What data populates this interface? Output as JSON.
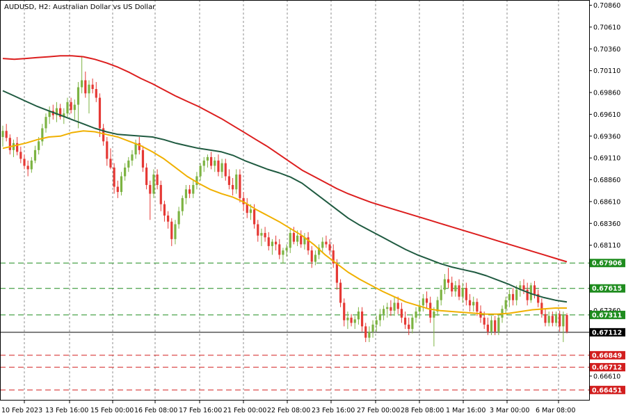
{
  "chart_data": {
    "type": "candlestick",
    "title": "AUDUSD, H2:  Australian Dollar vs US Dollar",
    "symbol": "AUDUSD",
    "timeframe": "H2",
    "description": "Australian Dollar vs US Dollar",
    "ylim": [
      0.6633,
      0.7092
    ],
    "grid": true,
    "price_ticks": [
      "0.70860",
      "0.70610",
      "0.70360",
      "0.70110",
      "0.69860",
      "0.69610",
      "0.69360",
      "0.69110",
      "0.68860",
      "0.68610",
      "0.68360",
      "0.68110",
      "0.67360",
      "0.66610"
    ],
    "time_labels": [
      "10 Feb 2023",
      "13 Feb 16:00",
      "15 Feb 00:00",
      "16 Feb 08:00",
      "17 Feb 16:00",
      "21 Feb 00:00",
      "22 Feb 08:00",
      "23 Feb 16:00",
      "27 Feb 00:00",
      "28 Feb 08:00",
      "1 Mar 16:00",
      "3 Mar 00:00",
      "6 Mar 08:00"
    ],
    "levels": [
      {
        "value": "0.67906",
        "color": "#1e8c1e",
        "style": "dashed"
      },
      {
        "value": "0.67615",
        "color": "#1e8c1e",
        "style": "dashed"
      },
      {
        "value": "0.67311",
        "color": "#1e8c1e",
        "style": "dashed"
      },
      {
        "value": "0.67112",
        "color": "#000000",
        "style": "solid"
      },
      {
        "value": "0.66849",
        "color": "#d21e1e",
        "style": "dashed"
      },
      {
        "value": "0.66712",
        "color": "#d21e1e",
        "style": "dashed"
      },
      {
        "value": "0.66451",
        "color": "#d21e1e",
        "style": "dashed"
      }
    ],
    "ohlc": [
      {
        "o": 0.6935,
        "h": 0.6948,
        "l": 0.6924,
        "c": 0.6942
      },
      {
        "o": 0.6942,
        "h": 0.695,
        "l": 0.693,
        "c": 0.6934
      },
      {
        "o": 0.6934,
        "h": 0.6938,
        "l": 0.6915,
        "c": 0.692
      },
      {
        "o": 0.692,
        "h": 0.6932,
        "l": 0.6912,
        "c": 0.6928
      },
      {
        "o": 0.6928,
        "h": 0.6935,
        "l": 0.6914,
        "c": 0.6918
      },
      {
        "o": 0.6918,
        "h": 0.6924,
        "l": 0.6905,
        "c": 0.691
      },
      {
        "o": 0.691,
        "h": 0.6915,
        "l": 0.6898,
        "c": 0.6902
      },
      {
        "o": 0.6902,
        "h": 0.6908,
        "l": 0.689,
        "c": 0.6898
      },
      {
        "o": 0.6898,
        "h": 0.6912,
        "l": 0.6894,
        "c": 0.6908
      },
      {
        "o": 0.6908,
        "h": 0.6925,
        "l": 0.6905,
        "c": 0.692
      },
      {
        "o": 0.692,
        "h": 0.6935,
        "l": 0.6915,
        "c": 0.693
      },
      {
        "o": 0.693,
        "h": 0.695,
        "l": 0.6925,
        "c": 0.6945
      },
      {
        "o": 0.6945,
        "h": 0.6962,
        "l": 0.694,
        "c": 0.6958
      },
      {
        "o": 0.6958,
        "h": 0.697,
        "l": 0.695,
        "c": 0.6965
      },
      {
        "o": 0.6965,
        "h": 0.6972,
        "l": 0.6955,
        "c": 0.696
      },
      {
        "o": 0.696,
        "h": 0.6975,
        "l": 0.6952,
        "c": 0.6968
      },
      {
        "o": 0.6968,
        "h": 0.6973,
        "l": 0.6955,
        "c": 0.6958
      },
      {
        "o": 0.6958,
        "h": 0.6968,
        "l": 0.695,
        "c": 0.6962
      },
      {
        "o": 0.6962,
        "h": 0.698,
        "l": 0.6958,
        "c": 0.6975
      },
      {
        "o": 0.6975,
        "h": 0.698,
        "l": 0.6962,
        "c": 0.6966
      },
      {
        "o": 0.6966,
        "h": 0.6978,
        "l": 0.6955,
        "c": 0.6972
      },
      {
        "o": 0.6972,
        "h": 0.6998,
        "l": 0.6945,
        "c": 0.6992
      },
      {
        "o": 0.6992,
        "h": 0.7028,
        "l": 0.6985,
        "c": 0.7
      },
      {
        "o": 0.7,
        "h": 0.701,
        "l": 0.698,
        "c": 0.6985
      },
      {
        "o": 0.6985,
        "h": 0.7,
        "l": 0.6962,
        "c": 0.6995
      },
      {
        "o": 0.6995,
        "h": 0.7002,
        "l": 0.6985,
        "c": 0.699
      },
      {
        "o": 0.699,
        "h": 0.6998,
        "l": 0.6975,
        "c": 0.698
      },
      {
        "o": 0.698,
        "h": 0.6985,
        "l": 0.6935,
        "c": 0.6945
      },
      {
        "o": 0.6945,
        "h": 0.695,
        "l": 0.6925,
        "c": 0.693
      },
      {
        "o": 0.693,
        "h": 0.6935,
        "l": 0.6902,
        "c": 0.691
      },
      {
        "o": 0.691,
        "h": 0.6922,
        "l": 0.6898,
        "c": 0.69
      },
      {
        "o": 0.69,
        "h": 0.6905,
        "l": 0.687,
        "c": 0.6878
      },
      {
        "o": 0.6878,
        "h": 0.6885,
        "l": 0.6865,
        "c": 0.6872
      },
      {
        "o": 0.6872,
        "h": 0.6895,
        "l": 0.6868,
        "c": 0.689
      },
      {
        "o": 0.689,
        "h": 0.6905,
        "l": 0.6885,
        "c": 0.69
      },
      {
        "o": 0.69,
        "h": 0.6912,
        "l": 0.6895,
        "c": 0.6908
      },
      {
        "o": 0.6908,
        "h": 0.692,
        "l": 0.6902,
        "c": 0.6915
      },
      {
        "o": 0.6915,
        "h": 0.6932,
        "l": 0.691,
        "c": 0.6928
      },
      {
        "o": 0.6928,
        "h": 0.6935,
        "l": 0.6915,
        "c": 0.692
      },
      {
        "o": 0.692,
        "h": 0.6925,
        "l": 0.6895,
        "c": 0.69
      },
      {
        "o": 0.69,
        "h": 0.6905,
        "l": 0.6875,
        "c": 0.688
      },
      {
        "o": 0.688,
        "h": 0.6885,
        "l": 0.684,
        "c": 0.687
      },
      {
        "o": 0.687,
        "h": 0.6898,
        "l": 0.6865,
        "c": 0.6892
      },
      {
        "o": 0.6892,
        "h": 0.6898,
        "l": 0.6875,
        "c": 0.688
      },
      {
        "o": 0.688,
        "h": 0.6885,
        "l": 0.685,
        "c": 0.6858
      },
      {
        "o": 0.6858,
        "h": 0.6862,
        "l": 0.6838,
        "c": 0.6845
      },
      {
        "o": 0.6845,
        "h": 0.685,
        "l": 0.683,
        "c": 0.6838
      },
      {
        "o": 0.6838,
        "h": 0.6842,
        "l": 0.681,
        "c": 0.6818
      },
      {
        "o": 0.6818,
        "h": 0.684,
        "l": 0.6812,
        "c": 0.6835
      },
      {
        "o": 0.6835,
        "h": 0.6855,
        "l": 0.683,
        "c": 0.685
      },
      {
        "o": 0.685,
        "h": 0.6868,
        "l": 0.6845,
        "c": 0.6865
      },
      {
        "o": 0.6865,
        "h": 0.688,
        "l": 0.6858,
        "c": 0.6875
      },
      {
        "o": 0.6875,
        "h": 0.688,
        "l": 0.6865,
        "c": 0.687
      },
      {
        "o": 0.687,
        "h": 0.6885,
        "l": 0.6865,
        "c": 0.688
      },
      {
        "o": 0.688,
        "h": 0.6895,
        "l": 0.6875,
        "c": 0.689
      },
      {
        "o": 0.689,
        "h": 0.6905,
        "l": 0.6885,
        "c": 0.6902
      },
      {
        "o": 0.6902,
        "h": 0.6912,
        "l": 0.6895,
        "c": 0.6908
      },
      {
        "o": 0.6908,
        "h": 0.6915,
        "l": 0.69,
        "c": 0.6912
      },
      {
        "o": 0.6912,
        "h": 0.6918,
        "l": 0.6898,
        "c": 0.6902
      },
      {
        "o": 0.6902,
        "h": 0.6912,
        "l": 0.6895,
        "c": 0.6908
      },
      {
        "o": 0.6908,
        "h": 0.6915,
        "l": 0.689,
        "c": 0.6895
      },
      {
        "o": 0.6895,
        "h": 0.691,
        "l": 0.6888,
        "c": 0.6905
      },
      {
        "o": 0.6905,
        "h": 0.691,
        "l": 0.6885,
        "c": 0.689
      },
      {
        "o": 0.689,
        "h": 0.6898,
        "l": 0.6875,
        "c": 0.688
      },
      {
        "o": 0.688,
        "h": 0.6888,
        "l": 0.6868,
        "c": 0.6875
      },
      {
        "o": 0.6875,
        "h": 0.6898,
        "l": 0.687,
        "c": 0.6892
      },
      {
        "o": 0.6892,
        "h": 0.6898,
        "l": 0.686,
        "c": 0.6865
      },
      {
        "o": 0.6865,
        "h": 0.6872,
        "l": 0.685,
        "c": 0.6858
      },
      {
        "o": 0.6858,
        "h": 0.6865,
        "l": 0.6842,
        "c": 0.6848
      },
      {
        "o": 0.6848,
        "h": 0.6858,
        "l": 0.684,
        "c": 0.6852
      },
      {
        "o": 0.6852,
        "h": 0.6858,
        "l": 0.683,
        "c": 0.6835
      },
      {
        "o": 0.6835,
        "h": 0.684,
        "l": 0.6815,
        "c": 0.6822
      },
      {
        "o": 0.6822,
        "h": 0.683,
        "l": 0.681,
        "c": 0.6825
      },
      {
        "o": 0.6825,
        "h": 0.6832,
        "l": 0.6815,
        "c": 0.682
      },
      {
        "o": 0.682,
        "h": 0.6826,
        "l": 0.6805,
        "c": 0.681
      },
      {
        "o": 0.681,
        "h": 0.6818,
        "l": 0.68,
        "c": 0.6815
      },
      {
        "o": 0.6815,
        "h": 0.6822,
        "l": 0.6805,
        "c": 0.6812
      },
      {
        "o": 0.6812,
        "h": 0.6818,
        "l": 0.6795,
        "c": 0.68
      },
      {
        "o": 0.68,
        "h": 0.6808,
        "l": 0.679,
        "c": 0.6805
      },
      {
        "o": 0.6805,
        "h": 0.6812,
        "l": 0.6798,
        "c": 0.6808
      },
      {
        "o": 0.6808,
        "h": 0.683,
        "l": 0.6802,
        "c": 0.6825
      },
      {
        "o": 0.6825,
        "h": 0.6832,
        "l": 0.6812,
        "c": 0.6815
      },
      {
        "o": 0.6815,
        "h": 0.6828,
        "l": 0.681,
        "c": 0.6822
      },
      {
        "o": 0.6822,
        "h": 0.6828,
        "l": 0.6808,
        "c": 0.6812
      },
      {
        "o": 0.6812,
        "h": 0.6825,
        "l": 0.6806,
        "c": 0.682
      },
      {
        "o": 0.682,
        "h": 0.6826,
        "l": 0.68,
        "c": 0.6805
      },
      {
        "o": 0.6805,
        "h": 0.681,
        "l": 0.6785,
        "c": 0.6792
      },
      {
        "o": 0.6792,
        "h": 0.6805,
        "l": 0.6788,
        "c": 0.68
      },
      {
        "o": 0.68,
        "h": 0.6812,
        "l": 0.6795,
        "c": 0.6808
      },
      {
        "o": 0.6808,
        "h": 0.682,
        "l": 0.6802,
        "c": 0.6815
      },
      {
        "o": 0.6815,
        "h": 0.6822,
        "l": 0.6808,
        "c": 0.6812
      },
      {
        "o": 0.6812,
        "h": 0.6818,
        "l": 0.68,
        "c": 0.6805
      },
      {
        "o": 0.6805,
        "h": 0.6812,
        "l": 0.6785,
        "c": 0.679
      },
      {
        "o": 0.679,
        "h": 0.6795,
        "l": 0.676,
        "c": 0.6768
      },
      {
        "o": 0.6768,
        "h": 0.6772,
        "l": 0.674,
        "c": 0.6745
      },
      {
        "o": 0.6745,
        "h": 0.675,
        "l": 0.6718,
        "c": 0.6725
      },
      {
        "o": 0.6725,
        "h": 0.6735,
        "l": 0.6715,
        "c": 0.6728
      },
      {
        "o": 0.6728,
        "h": 0.6732,
        "l": 0.6718,
        "c": 0.6722
      },
      {
        "o": 0.6722,
        "h": 0.673,
        "l": 0.6715,
        "c": 0.6726
      },
      {
        "o": 0.6726,
        "h": 0.674,
        "l": 0.672,
        "c": 0.6735
      },
      {
        "o": 0.6735,
        "h": 0.674,
        "l": 0.6712,
        "c": 0.6718
      },
      {
        "o": 0.6718,
        "h": 0.6722,
        "l": 0.67,
        "c": 0.6705
      },
      {
        "o": 0.6705,
        "h": 0.6718,
        "l": 0.67,
        "c": 0.6712
      },
      {
        "o": 0.6712,
        "h": 0.6725,
        "l": 0.6705,
        "c": 0.672
      },
      {
        "o": 0.672,
        "h": 0.673,
        "l": 0.6712,
        "c": 0.6725
      },
      {
        "o": 0.6725,
        "h": 0.6738,
        "l": 0.6718,
        "c": 0.6732
      },
      {
        "o": 0.6732,
        "h": 0.6742,
        "l": 0.6725,
        "c": 0.6738
      },
      {
        "o": 0.6738,
        "h": 0.6745,
        "l": 0.6728,
        "c": 0.674
      },
      {
        "o": 0.674,
        "h": 0.6748,
        "l": 0.673,
        "c": 0.6736
      },
      {
        "o": 0.6736,
        "h": 0.6752,
        "l": 0.673,
        "c": 0.6745
      },
      {
        "o": 0.6745,
        "h": 0.6752,
        "l": 0.6732,
        "c": 0.6738
      },
      {
        "o": 0.6738,
        "h": 0.6745,
        "l": 0.6722,
        "c": 0.6728
      },
      {
        "o": 0.6728,
        "h": 0.6735,
        "l": 0.6715,
        "c": 0.672
      },
      {
        "o": 0.672,
        "h": 0.6728,
        "l": 0.6708,
        "c": 0.6715
      },
      {
        "o": 0.6715,
        "h": 0.6732,
        "l": 0.671,
        "c": 0.6728
      },
      {
        "o": 0.6728,
        "h": 0.674,
        "l": 0.6722,
        "c": 0.6735
      },
      {
        "o": 0.6735,
        "h": 0.6748,
        "l": 0.6728,
        "c": 0.6742
      },
      {
        "o": 0.6742,
        "h": 0.6755,
        "l": 0.6735,
        "c": 0.675
      },
      {
        "o": 0.675,
        "h": 0.6758,
        "l": 0.6738,
        "c": 0.6745
      },
      {
        "o": 0.6745,
        "h": 0.6752,
        "l": 0.6722,
        "c": 0.6728
      },
      {
        "o": 0.6728,
        "h": 0.674,
        "l": 0.6695,
        "c": 0.6735
      },
      {
        "o": 0.6735,
        "h": 0.6752,
        "l": 0.673,
        "c": 0.6748
      },
      {
        "o": 0.6748,
        "h": 0.6765,
        "l": 0.6742,
        "c": 0.676
      },
      {
        "o": 0.676,
        "h": 0.6778,
        "l": 0.6755,
        "c": 0.6772
      },
      {
        "o": 0.6772,
        "h": 0.6785,
        "l": 0.6762,
        "c": 0.6768
      },
      {
        "o": 0.6768,
        "h": 0.6775,
        "l": 0.6752,
        "c": 0.6758
      },
      {
        "o": 0.6758,
        "h": 0.677,
        "l": 0.6752,
        "c": 0.6765
      },
      {
        "o": 0.6765,
        "h": 0.6772,
        "l": 0.6748,
        "c": 0.6752
      },
      {
        "o": 0.6752,
        "h": 0.6768,
        "l": 0.6745,
        "c": 0.6762
      },
      {
        "o": 0.6762,
        "h": 0.6768,
        "l": 0.6742,
        "c": 0.6748
      },
      {
        "o": 0.6748,
        "h": 0.6755,
        "l": 0.6735,
        "c": 0.6742
      },
      {
        "o": 0.6742,
        "h": 0.6752,
        "l": 0.6735,
        "c": 0.6746
      },
      {
        "o": 0.6746,
        "h": 0.675,
        "l": 0.673,
        "c": 0.6735
      },
      {
        "o": 0.6735,
        "h": 0.6742,
        "l": 0.6722,
        "c": 0.6728
      },
      {
        "o": 0.6728,
        "h": 0.6735,
        "l": 0.6715,
        "c": 0.672
      },
      {
        "o": 0.672,
        "h": 0.6728,
        "l": 0.6708,
        "c": 0.6712
      },
      {
        "o": 0.6712,
        "h": 0.673,
        "l": 0.6708,
        "c": 0.6725
      },
      {
        "o": 0.6725,
        "h": 0.673,
        "l": 0.6708,
        "c": 0.6712
      },
      {
        "o": 0.6712,
        "h": 0.6732,
        "l": 0.6708,
        "c": 0.6728
      },
      {
        "o": 0.6728,
        "h": 0.6742,
        "l": 0.6722,
        "c": 0.6738
      },
      {
        "o": 0.6738,
        "h": 0.6752,
        "l": 0.6732,
        "c": 0.6748
      },
      {
        "o": 0.6748,
        "h": 0.676,
        "l": 0.674,
        "c": 0.6755
      },
      {
        "o": 0.6755,
        "h": 0.6762,
        "l": 0.6742,
        "c": 0.6748
      },
      {
        "o": 0.6748,
        "h": 0.6765,
        "l": 0.6742,
        "c": 0.676
      },
      {
        "o": 0.676,
        "h": 0.677,
        "l": 0.6752,
        "c": 0.6765
      },
      {
        "o": 0.6765,
        "h": 0.6772,
        "l": 0.6755,
        "c": 0.676
      },
      {
        "o": 0.676,
        "h": 0.6768,
        "l": 0.6742,
        "c": 0.6748
      },
      {
        "o": 0.6748,
        "h": 0.6768,
        "l": 0.6745,
        "c": 0.6765
      },
      {
        "o": 0.6765,
        "h": 0.677,
        "l": 0.675,
        "c": 0.6755
      },
      {
        "o": 0.6755,
        "h": 0.676,
        "l": 0.674,
        "c": 0.6745
      },
      {
        "o": 0.6745,
        "h": 0.675,
        "l": 0.6728,
        "c": 0.6732
      },
      {
        "o": 0.6732,
        "h": 0.6738,
        "l": 0.6718,
        "c": 0.6722
      },
      {
        "o": 0.6722,
        "h": 0.6735,
        "l": 0.6718,
        "c": 0.673
      },
      {
        "o": 0.673,
        "h": 0.6735,
        "l": 0.6718,
        "c": 0.6722
      },
      {
        "o": 0.6722,
        "h": 0.6735,
        "l": 0.6718,
        "c": 0.6732
      },
      {
        "o": 0.6732,
        "h": 0.6736,
        "l": 0.6712,
        "c": 0.6718
      },
      {
        "o": 0.6718,
        "h": 0.6735,
        "l": 0.67,
        "c": 0.6731
      },
      {
        "o": 0.6731,
        "h": 0.6733,
        "l": 0.671,
        "c": 0.6712
      }
    ],
    "ma_fast": [
      0.6922,
      0.6925,
      0.6928,
      0.6932,
      0.6935,
      0.6936,
      0.694,
      0.6942,
      0.6941,
      0.6938,
      0.6935,
      0.693,
      0.6925,
      0.6918,
      0.691,
      0.69,
      0.689,
      0.6882,
      0.6875,
      0.687,
      0.6866,
      0.686,
      0.6852,
      0.6845,
      0.6838,
      0.683,
      0.6822,
      0.6812,
      0.68,
      0.679,
      0.678,
      0.6772,
      0.6765,
      0.6758,
      0.6752,
      0.6746,
      0.6742,
      0.6738,
      0.6736,
      0.6735,
      0.6734,
      0.6733,
      0.6732,
      0.6732,
      0.6733,
      0.6735,
      0.6737,
      0.6738,
      0.6739,
      0.6739
    ],
    "ma_mid": [
      0.6988,
      0.6982,
      0.6976,
      0.697,
      0.6965,
      0.696,
      0.6955,
      0.695,
      0.6945,
      0.6941,
      0.6938,
      0.6937,
      0.6936,
      0.6935,
      0.6932,
      0.6928,
      0.6925,
      0.6922,
      0.692,
      0.6918,
      0.6914,
      0.6908,
      0.6903,
      0.6898,
      0.6894,
      0.6889,
      0.6882,
      0.6872,
      0.6862,
      0.6852,
      0.6842,
      0.6834,
      0.6827,
      0.682,
      0.6813,
      0.6806,
      0.68,
      0.6795,
      0.679,
      0.6786,
      0.6783,
      0.678,
      0.6776,
      0.6771,
      0.6766,
      0.676,
      0.6755,
      0.6751,
      0.6748,
      0.6746
    ],
    "ma_slow": [
      0.7025,
      0.7024,
      0.7025,
      0.7026,
      0.7027,
      0.7028,
      0.7028,
      0.7027,
      0.7024,
      0.702,
      0.7015,
      0.7009,
      0.7002,
      0.6996,
      0.6989,
      0.6982,
      0.6976,
      0.697,
      0.6963,
      0.6956,
      0.6948,
      0.694,
      0.6932,
      0.6924,
      0.6915,
      0.6906,
      0.6897,
      0.689,
      0.6883,
      0.6876,
      0.687,
      0.6865,
      0.686,
      0.6856,
      0.6852,
      0.6848,
      0.6844,
      0.684,
      0.6836,
      0.6832,
      0.6828,
      0.6824,
      0.682,
      0.6816,
      0.6812,
      0.6808,
      0.6804,
      0.68,
      0.6796,
      0.6792
    ]
  }
}
